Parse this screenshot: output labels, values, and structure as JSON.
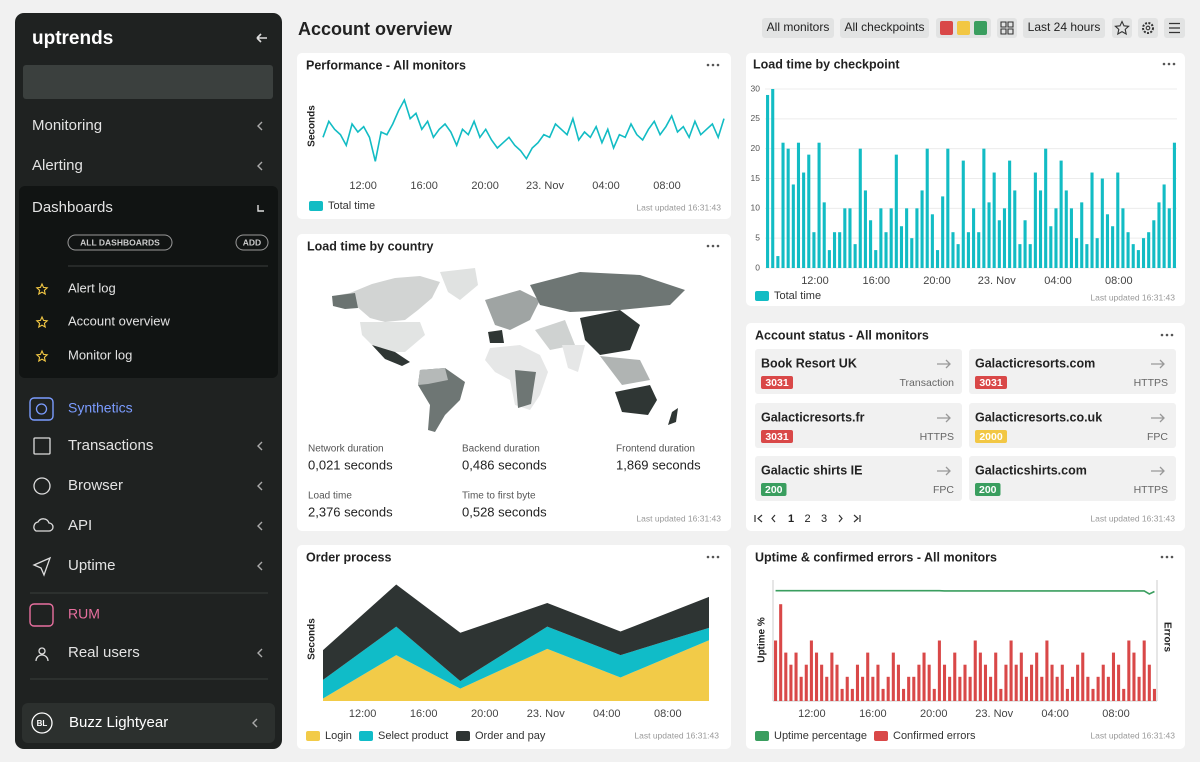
{
  "sidebar": {
    "logo": "uptrends",
    "nav_top": [
      "Monitoring",
      "Alerting"
    ],
    "dashboards": {
      "title": "Dashboards",
      "all": "ALL DASHBOARDS",
      "add": "ADD",
      "items": [
        "Alert log",
        "Account overview",
        "Monitor log"
      ]
    },
    "synthetics": {
      "title": "Synthetics",
      "items": [
        "Transactions",
        "Browser",
        "API",
        "Uptime"
      ]
    },
    "rum": {
      "title": "RUM",
      "items": [
        "Real users"
      ]
    },
    "user": {
      "initials": "BL",
      "name": "Buzz Lightyear"
    }
  },
  "header": {
    "title": "Account overview",
    "filters": [
      "All monitors",
      "All checkpoints"
    ],
    "range": "Last 24 hours"
  },
  "widgets": {
    "performance": {
      "title": "Performance - All monitors",
      "updated": "Last updated 16:31:43",
      "chart": {
        "type": "line",
        "ylabel": "Seconds",
        "xlim": [
          0,
          69
        ],
        "ylim": [
          0,
          3
        ],
        "xticks": [
          {
            "value": 6.9,
            "label": "12:00"
          },
          {
            "value": 17.4,
            "label": "16:00"
          },
          {
            "value": 27.9,
            "label": "20:00"
          },
          {
            "value": 38.2,
            "label": "23. Nov"
          },
          {
            "value": 48.7,
            "label": "04:00"
          },
          {
            "value": 59.2,
            "label": "08:00"
          }
        ],
        "series": [
          {
            "name": "Total time",
            "color": "#12bcc4",
            "values": [
              1.3,
              1.9,
              1.6,
              1.4,
              1.0,
              1.8,
              1.5,
              1.7,
              1.3,
              0.4,
              1.5,
              1.4,
              1.8,
              2.3,
              2.7,
              2.0,
              2.2,
              1.6,
              1.9,
              1.3,
              1.6,
              1.8,
              1.5,
              1.0,
              1.6,
              1.4,
              1.9,
              1.3,
              1.6,
              1.2,
              0.9,
              1.1,
              1.3,
              1.0,
              0.8,
              0.5,
              0.9,
              1.1,
              1.4,
              1.3,
              1.8,
              1.6,
              1.4,
              2.0,
              1.2,
              1.5,
              1.3,
              1.7,
              1.1,
              1.6,
              0.9,
              1.4,
              1.3,
              1.8,
              1.4,
              1.2,
              1.6,
              1.9,
              1.4,
              1.7,
              2.1,
              1.5,
              1.7,
              1.3,
              1.9,
              1.4,
              1.6,
              1.8,
              1.3,
              2.0
            ]
          }
        ]
      }
    },
    "checkpoint": {
      "title": "Load time by checkpoint",
      "updated": "Last updated 16:31:43",
      "chart": {
        "type": "bar",
        "grid": true,
        "xlim": [
          0,
          80
        ],
        "ylim": [
          0,
          30
        ],
        "yticks": [
          0,
          5,
          10,
          15,
          20,
          25,
          30
        ],
        "xticks": [
          {
            "value": 9.7,
            "label": "12:00"
          },
          {
            "value": 21.6,
            "label": "16:00"
          },
          {
            "value": 33.4,
            "label": "20:00"
          },
          {
            "value": 45.0,
            "label": "23. Nov"
          },
          {
            "value": 56.9,
            "label": "04:00"
          },
          {
            "value": 68.7,
            "label": "08:00"
          }
        ],
        "series": [
          {
            "name": "Total time",
            "color": "#12bcc4",
            "values": [
              29,
              30,
              2,
              21,
              20,
              14,
              21,
              16,
              19,
              6,
              21,
              11,
              3,
              6,
              6,
              10,
              10,
              4,
              20,
              13,
              8,
              3,
              10,
              6,
              10,
              19,
              7,
              10,
              5,
              10,
              13,
              20,
              9,
              3,
              12,
              20,
              6,
              4,
              18,
              6,
              10,
              6,
              20,
              11,
              16,
              8,
              10,
              18,
              13,
              4,
              8,
              4,
              16,
              13,
              20,
              7,
              10,
              18,
              13,
              10,
              5,
              11,
              4,
              16,
              5,
              15,
              9,
              7,
              16,
              10,
              6,
              4,
              3,
              5,
              6,
              8,
              11,
              14,
              10,
              21
            ]
          }
        ]
      }
    },
    "country": {
      "title": "Load time by country",
      "updated": "Last updated 16:31:43",
      "metrics": [
        {
          "label": "Network duration",
          "value": "0,021 seconds"
        },
        {
          "label": "Backend duration",
          "value": "0,486 seconds"
        },
        {
          "label": "Frontend duration",
          "value": "1,869 seconds"
        },
        {
          "label": "Load time",
          "value": "2,376 seconds"
        },
        {
          "label": "Time to first byte",
          "value": "0,528 seconds"
        }
      ]
    },
    "status": {
      "title": "Account status - All monitors",
      "updated": "Last updated 16:31:43",
      "monitors": [
        {
          "name": "Book Resort UK",
          "code": 3031,
          "type": "Transaction",
          "color": "#d94848"
        },
        {
          "name": "Galacticresorts.com",
          "code": 3031,
          "type": "HTTPS",
          "color": "#d94848"
        },
        {
          "name": "Galacticresorts.fr",
          "code": 3031,
          "type": "HTTPS",
          "color": "#d94848"
        },
        {
          "name": "Galacticresorts.co.uk",
          "code": 2000,
          "type": "FPC",
          "color": "#f2c744"
        },
        {
          "name": "Galactic shirts IE",
          "code": 200,
          "type": "FPC",
          "color": "#3a9e5f"
        },
        {
          "name": "Galacticshirts.com",
          "code": 200,
          "type": "HTTPS",
          "color": "#3a9e5f"
        }
      ],
      "pages": [
        1,
        2,
        3
      ]
    },
    "order": {
      "title": "Order process",
      "updated": "Last updated 16:31:43",
      "chart": {
        "type": "area",
        "stacked": true,
        "ylabel": "Seconds",
        "xlim": [
          -2.6,
          22.7
        ],
        "ylim": [
          0,
          10
        ],
        "xticks": [
          {
            "value": 0,
            "label": "12:00"
          },
          {
            "value": 4,
            "label": "16:00"
          },
          {
            "value": 8,
            "label": "20:00"
          },
          {
            "value": 12,
            "label": "23. Nov"
          },
          {
            "value": 16,
            "label": "04:00"
          },
          {
            "value": 20,
            "label": "08:00"
          }
        ],
        "x": [
          -2.6,
          2.2,
          6.4,
          12.1,
          16.9,
          22.7
        ],
        "series": [
          {
            "name": "Login",
            "color": "#f2cb48",
            "values": [
              0.2,
              3.7,
              1.0,
              4.2,
              1.9,
              4.9
            ]
          },
          {
            "name": "Select product",
            "color": "#10bcc8",
            "values": [
              1.5,
              2.3,
              0.6,
              1.8,
              1.8,
              1.0
            ]
          },
          {
            "name": "Order and pay",
            "color": "#2e3433",
            "values": [
              2.4,
              3.4,
              3.9,
              1.9,
              1.9,
              2.5
            ]
          }
        ]
      }
    },
    "uptime": {
      "title": "Uptime & confirmed errors - All monitors",
      "updated": "Last updated 16:31:43",
      "chart": {
        "type": "bar_line",
        "ylabel": "Uptime %",
        "y2label": "Errors",
        "xlim": [
          0,
          75
        ],
        "ylim": [
          0,
          100
        ],
        "y2lim": [
          0,
          10
        ],
        "xticks": [
          {
            "value": 7.6,
            "label": "12:00"
          },
          {
            "value": 19.5,
            "label": "16:00"
          },
          {
            "value": 31.4,
            "label": "20:00"
          },
          {
            "value": 43.2,
            "label": "23. Nov"
          },
          {
            "value": 55.1,
            "label": "04:00"
          },
          {
            "value": 67.0,
            "label": "08:00"
          }
        ],
        "series": [
          {
            "name": "Uptime percentage",
            "color": "#3a9e5f",
            "type": "line",
            "values": [
              91.2,
              91.2,
              91.2,
              91.2,
              91.2,
              91.2,
              91.2,
              91.2,
              91.2,
              91.2,
              91.2,
              91.2,
              91.2,
              91.2,
              91.2,
              91.2,
              91.2,
              91.2,
              91.2,
              91.2,
              91.2,
              91.2,
              91.2,
              91.2,
              91.2,
              91.2,
              91.2,
              91.2,
              91.2,
              91.2,
              91.2,
              91.2,
              91.2,
              91,
              91,
              91,
              91,
              91,
              91,
              91,
              91,
              91,
              91,
              91,
              91,
              91,
              91,
              91,
              91,
              91,
              91,
              91,
              91,
              91,
              91,
              91,
              91,
              91,
              91,
              91,
              91,
              91,
              91,
              91,
              91,
              91,
              91,
              91,
              91,
              91,
              91,
              91,
              91,
              88.5,
              90.5
            ]
          },
          {
            "name": "Confirmed errors",
            "color": "#d94848",
            "type": "bar",
            "axis": "y2",
            "values": [
              5,
              8,
              4,
              3,
              4,
              2,
              3,
              5,
              4,
              3,
              2,
              4,
              3,
              1,
              2,
              1,
              3,
              2,
              4,
              2,
              3,
              1,
              2,
              4,
              3,
              1,
              2,
              2,
              3,
              4,
              3,
              1,
              5,
              3,
              2,
              4,
              2,
              3,
              2,
              5,
              4,
              3,
              2,
              4,
              1,
              3,
              5,
              3,
              4,
              2,
              3,
              4,
              2,
              5,
              3,
              2,
              3,
              1,
              2,
              3,
              4,
              2,
              1,
              2,
              3,
              2,
              4,
              3,
              1,
              5,
              4,
              2,
              5,
              3,
              1
            ]
          }
        ]
      }
    }
  }
}
